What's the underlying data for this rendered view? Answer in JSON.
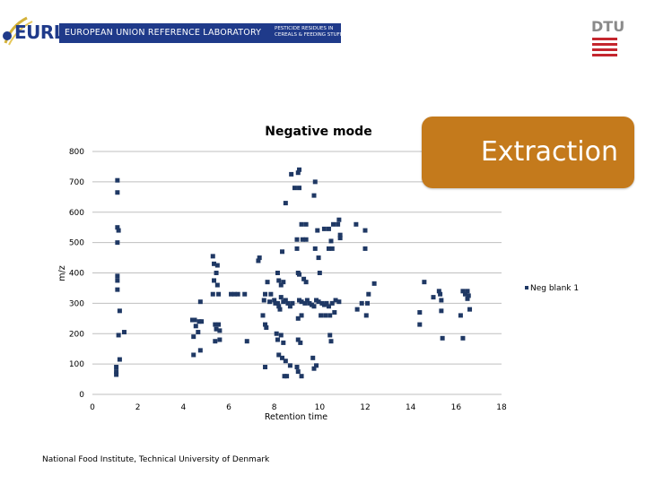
{
  "header": {
    "logo_text": "EURL",
    "banner_title": "EUROPEAN UNION REFERENCE LABORATORY",
    "banner_subtitle_line1": "PESTICIDE RESIDUES IN",
    "banner_subtitle_line2": "CEREALS & FEEDING STUFF",
    "dtu_logo_text": "DTU"
  },
  "extraction_box": {
    "label": "Extraction",
    "color": "#c47a1c"
  },
  "footer": {
    "text": "National Food Institute, Technical University of Denmark"
  },
  "colors": {
    "marker": "#1f3864",
    "axis": "#808080"
  },
  "chart_data": {
    "type": "scatter",
    "title": "Negative mode",
    "xlabel": "Retention time",
    "ylabel": "m/z",
    "xlim": [
      0,
      18
    ],
    "ylim": [
      0,
      800
    ],
    "x_ticks": [
      "0",
      "2",
      "4",
      "6",
      "8",
      "10",
      "12",
      "14",
      "16",
      "18"
    ],
    "y_ticks": [
      "0",
      "100",
      "200",
      "300",
      "400",
      "500",
      "600",
      "700",
      "800"
    ],
    "grid": "horizontal",
    "legend": {
      "position": "right",
      "entries": [
        "Neg blank 1"
      ]
    },
    "series": [
      {
        "name": "Neg blank 1",
        "points": [
          [
            1.1,
            705
          ],
          [
            1.1,
            665
          ],
          [
            1.1,
            550
          ],
          [
            1.15,
            540
          ],
          [
            1.1,
            500
          ],
          [
            1.1,
            390
          ],
          [
            1.1,
            375
          ],
          [
            1.1,
            345
          ],
          [
            1.2,
            275
          ],
          [
            1.15,
            195
          ],
          [
            1.4,
            205
          ],
          [
            1.2,
            115
          ],
          [
            1.05,
            90
          ],
          [
            1.05,
            75
          ],
          [
            1.05,
            65
          ],
          [
            4.4,
            245
          ],
          [
            4.5,
            245
          ],
          [
            4.7,
            240
          ],
          [
            4.8,
            240
          ],
          [
            4.55,
            225
          ],
          [
            4.45,
            190
          ],
          [
            4.65,
            205
          ],
          [
            4.45,
            130
          ],
          [
            4.75,
            145
          ],
          [
            4.75,
            305
          ],
          [
            5.3,
            455
          ],
          [
            5.35,
            430
          ],
          [
            5.5,
            425
          ],
          [
            5.45,
            400
          ],
          [
            5.35,
            375
          ],
          [
            5.5,
            360
          ],
          [
            5.3,
            330
          ],
          [
            5.55,
            330
          ],
          [
            5.4,
            230
          ],
          [
            5.55,
            230
          ],
          [
            5.45,
            215
          ],
          [
            5.6,
            210
          ],
          [
            5.4,
            175
          ],
          [
            5.6,
            180
          ],
          [
            6.1,
            330
          ],
          [
            6.25,
            330
          ],
          [
            6.4,
            330
          ],
          [
            6.7,
            330
          ],
          [
            6.8,
            175
          ],
          [
            7.35,
            450
          ],
          [
            7.3,
            440
          ],
          [
            7.6,
            330
          ],
          [
            7.55,
            310
          ],
          [
            7.8,
            305
          ],
          [
            7.5,
            260
          ],
          [
            7.6,
            230
          ],
          [
            7.65,
            220
          ],
          [
            7.6,
            90
          ],
          [
            7.7,
            370
          ],
          [
            7.85,
            330
          ],
          [
            8.0,
            310
          ],
          [
            8.05,
            300
          ],
          [
            8.15,
            300
          ],
          [
            8.2,
            290
          ],
          [
            8.25,
            280
          ],
          [
            8.3,
            320
          ],
          [
            8.4,
            305
          ],
          [
            8.5,
            310
          ],
          [
            8.6,
            300
          ],
          [
            8.7,
            290
          ],
          [
            8.8,
            300
          ],
          [
            8.15,
            400
          ],
          [
            8.2,
            375
          ],
          [
            8.3,
            360
          ],
          [
            8.4,
            370
          ],
          [
            8.35,
            470
          ],
          [
            8.5,
            630
          ],
          [
            8.1,
            200
          ],
          [
            8.15,
            180
          ],
          [
            8.3,
            195
          ],
          [
            8.4,
            170
          ],
          [
            8.2,
            130
          ],
          [
            8.35,
            120
          ],
          [
            8.5,
            110
          ],
          [
            8.7,
            95
          ],
          [
            8.45,
            60
          ],
          [
            8.55,
            60
          ],
          [
            8.75,
            725
          ],
          [
            8.9,
            680
          ],
          [
            9.1,
            680
          ],
          [
            9.05,
            730
          ],
          [
            9.1,
            740
          ],
          [
            9.0,
            510
          ],
          [
            9.2,
            560
          ],
          [
            9.4,
            560
          ],
          [
            9.25,
            510
          ],
          [
            9.4,
            510
          ],
          [
            9.0,
            480
          ],
          [
            9.05,
            400
          ],
          [
            9.1,
            395
          ],
          [
            9.3,
            380
          ],
          [
            9.4,
            370
          ],
          [
            9.1,
            310
          ],
          [
            9.2,
            305
          ],
          [
            9.35,
            300
          ],
          [
            9.45,
            310
          ],
          [
            9.55,
            300
          ],
          [
            9.65,
            295
          ],
          [
            9.75,
            290
          ],
          [
            9.85,
            310
          ],
          [
            9.95,
            305
          ],
          [
            10.1,
            300
          ],
          [
            10.2,
            295
          ],
          [
            10.3,
            300
          ],
          [
            10.4,
            290
          ],
          [
            10.55,
            300
          ],
          [
            10.7,
            310
          ],
          [
            10.85,
            305
          ],
          [
            9.05,
            250
          ],
          [
            9.2,
            260
          ],
          [
            9.05,
            180
          ],
          [
            9.15,
            170
          ],
          [
            9.0,
            90
          ],
          [
            9.05,
            75
          ],
          [
            9.2,
            60
          ],
          [
            9.8,
            700
          ],
          [
            9.75,
            655
          ],
          [
            9.9,
            540
          ],
          [
            9.8,
            480
          ],
          [
            9.95,
            450
          ],
          [
            10.0,
            400
          ],
          [
            10.2,
            545
          ],
          [
            10.4,
            545
          ],
          [
            10.5,
            505
          ],
          [
            10.4,
            480
          ],
          [
            10.55,
            480
          ],
          [
            10.6,
            560
          ],
          [
            10.8,
            560
          ],
          [
            10.85,
            575
          ],
          [
            10.9,
            515
          ],
          [
            10.9,
            525
          ],
          [
            9.7,
            120
          ],
          [
            9.85,
            95
          ],
          [
            10.05,
            260
          ],
          [
            10.25,
            260
          ],
          [
            10.45,
            260
          ],
          [
            10.65,
            270
          ],
          [
            10.45,
            195
          ],
          [
            10.5,
            175
          ],
          [
            9.75,
            85
          ],
          [
            11.6,
            560
          ],
          [
            12.0,
            540
          ],
          [
            12.0,
            480
          ],
          [
            11.65,
            280
          ],
          [
            11.85,
            300
          ],
          [
            12.05,
            260
          ],
          [
            12.15,
            330
          ],
          [
            12.1,
            300
          ],
          [
            12.4,
            365
          ],
          [
            14.6,
            370
          ],
          [
            14.4,
            270
          ],
          [
            14.4,
            230
          ],
          [
            15.0,
            320
          ],
          [
            15.25,
            340
          ],
          [
            15.3,
            330
          ],
          [
            15.35,
            310
          ],
          [
            15.35,
            275
          ],
          [
            15.4,
            185
          ],
          [
            16.2,
            260
          ],
          [
            16.3,
            185
          ],
          [
            16.3,
            340
          ],
          [
            16.4,
            330
          ],
          [
            16.5,
            340
          ],
          [
            16.55,
            325
          ],
          [
            16.5,
            315
          ],
          [
            16.6,
            280
          ]
        ]
      }
    ]
  }
}
